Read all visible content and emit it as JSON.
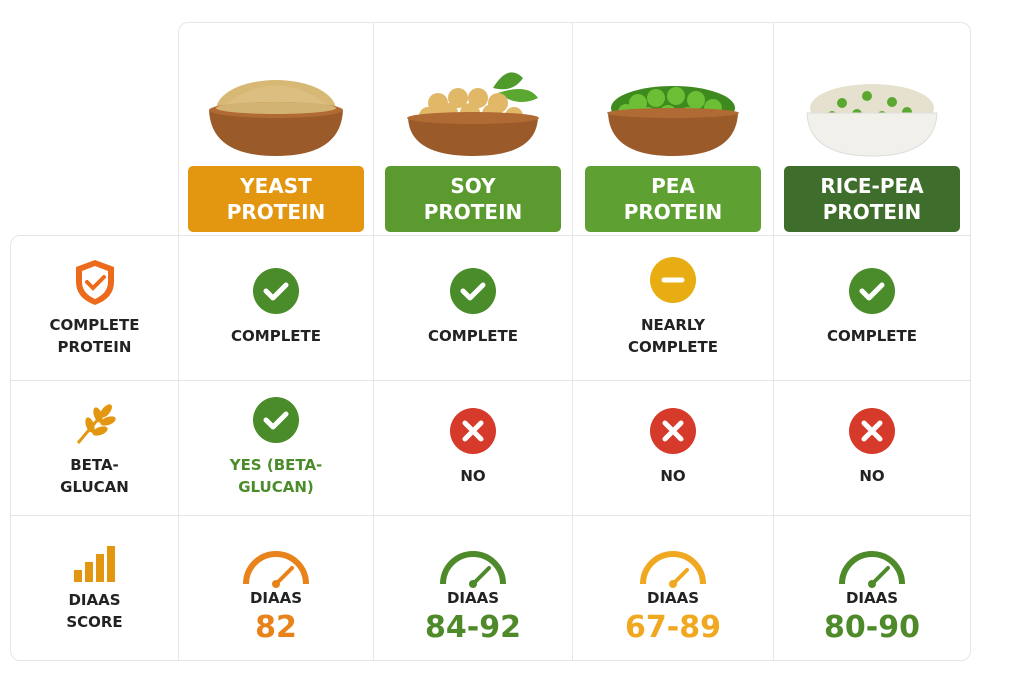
{
  "columns": [
    {
      "name": "YEAST PROTEIN"
    },
    {
      "name": "SOY PROTEIN"
    },
    {
      "name": "PEA PROTEIN"
    },
    {
      "name": "RICE-PEA PROTEIN"
    }
  ],
  "rows": [
    {
      "label": "COMPLETE PROTEIN",
      "cells": [
        "COMPLETE",
        "COMPLETE",
        "NEARLY COMPLETE",
        "COMPLETE"
      ]
    },
    {
      "label": "BETA-GLUCAN",
      "cells": [
        "YES (BETA-GLUCAN)",
        "NO",
        "NO",
        "NO"
      ]
    },
    {
      "label": "DIAAS SCORE",
      "cells": [
        {
          "label": "DIAAS",
          "value": "82"
        },
        {
          "label": "DIAAS",
          "value": "84-92"
        },
        {
          "label": "DIAAS",
          "value": "67-89"
        },
        {
          "label": "DIAAS",
          "value": "80-90"
        }
      ]
    }
  ]
}
